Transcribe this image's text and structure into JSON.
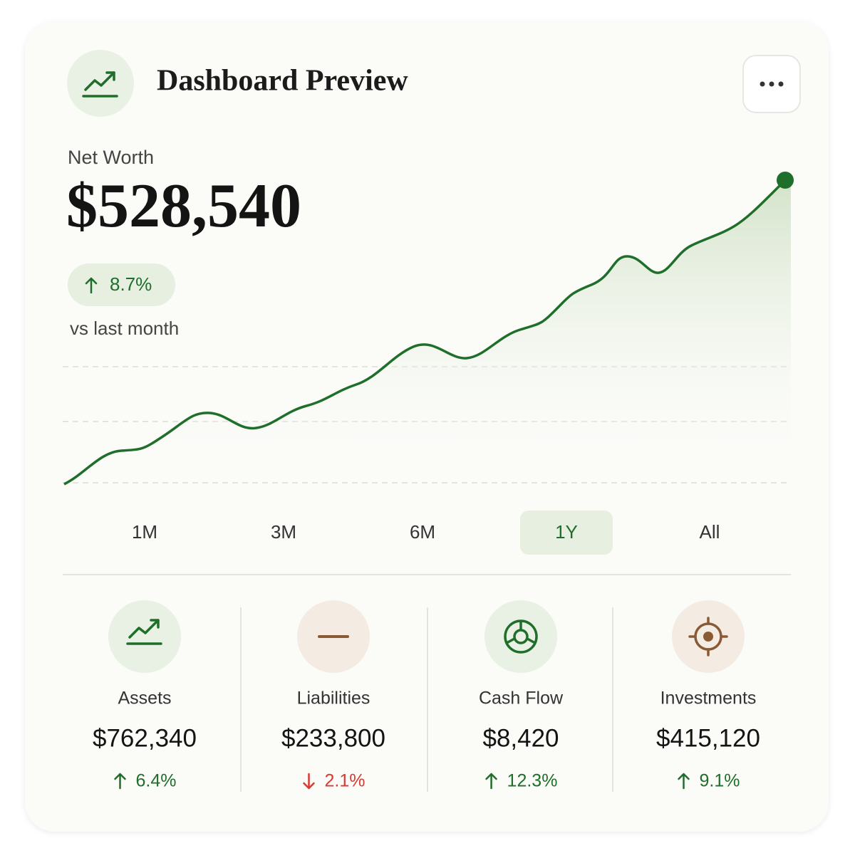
{
  "header": {
    "title": "Dashboard Preview"
  },
  "net_worth": {
    "label": "Net Worth",
    "value": "$528,540",
    "change": "8.7%",
    "direction": "up",
    "note": "vs last month"
  },
  "ranges": {
    "options": [
      "1M",
      "3M",
      "6M",
      "1Y",
      "All"
    ],
    "selected": 3
  },
  "stats": [
    {
      "label": "Assets",
      "value": "$762,340",
      "change": "6.4%",
      "direction": "up"
    },
    {
      "label": "Liabilities",
      "value": "$233,800",
      "change": "2.1%",
      "direction": "down"
    },
    {
      "label": "Cash Flow",
      "value": "$8,420",
      "change": "12.3%",
      "direction": "up"
    },
    {
      "label": "Investments",
      "value": "$415,120",
      "change": "9.1%",
      "direction": "up"
    }
  ]
}
